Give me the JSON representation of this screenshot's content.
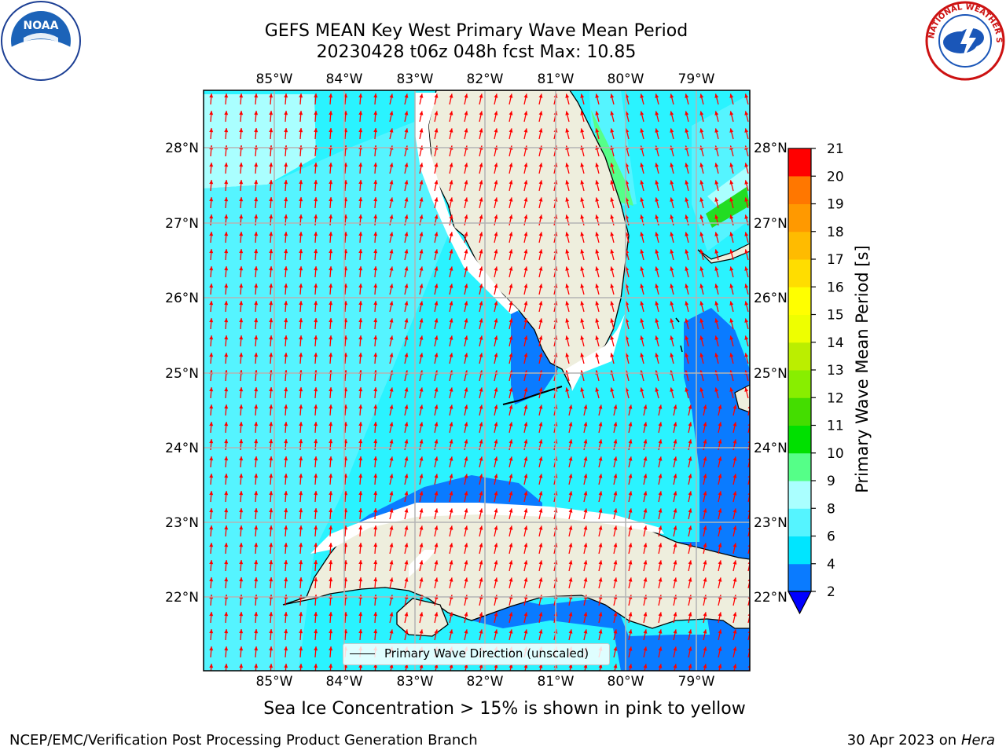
{
  "title": {
    "line1": "GEFS MEAN Key West Primary Wave Mean Period",
    "line2": "20230428 t06z 048h fcst   Max: 10.85"
  },
  "logos": {
    "left": "noaa-logo",
    "left_text": "NOAA",
    "right": "nws-logo",
    "right_text": "NATIONAL WEATHER SERVICE"
  },
  "map": {
    "lon_labels": [
      "85°W",
      "84°W",
      "83°W",
      "82°W",
      "81°W",
      "80°W",
      "79°W"
    ],
    "lat_labels": [
      "28°N",
      "27°N",
      "26°N",
      "25°N",
      "24°N",
      "23°N",
      "22°N"
    ],
    "lon_range": [
      -86.0,
      -78.3
    ],
    "lat_range": [
      21.0,
      28.8
    ],
    "ocean_color": "#2af3ff",
    "land_color": "#eeeedd",
    "arrow_color": "#ff0000",
    "grid": true
  },
  "colorbar": {
    "label": "Primary Wave Mean Period [s]",
    "ticks": [
      "2",
      "4",
      "6",
      "8",
      "9",
      "10",
      "11",
      "12",
      "13",
      "14",
      "15",
      "16",
      "17",
      "18",
      "19",
      "20",
      "21"
    ],
    "colors": [
      "#0a7bff",
      "#00e5ff",
      "#55f4ff",
      "#aaffff",
      "#55ff88",
      "#00e000",
      "#44dd00",
      "#88ee00",
      "#bbee00",
      "#eeff00",
      "#ffff00",
      "#ffdd00",
      "#ffbb00",
      "#ff9900",
      "#ff7700",
      "#ff4400",
      "#ff0000"
    ],
    "under_color": "#0000ff"
  },
  "legend": {
    "label": "Primary Wave Direction (unscaled)"
  },
  "note": "Sea Ice Concentration > 15% is shown in pink to yellow",
  "footer": {
    "left": "NCEP/EMC/Verification Post Processing Product Generation Branch",
    "date": "30 Apr 2023 on ",
    "machine": "Hera"
  }
}
